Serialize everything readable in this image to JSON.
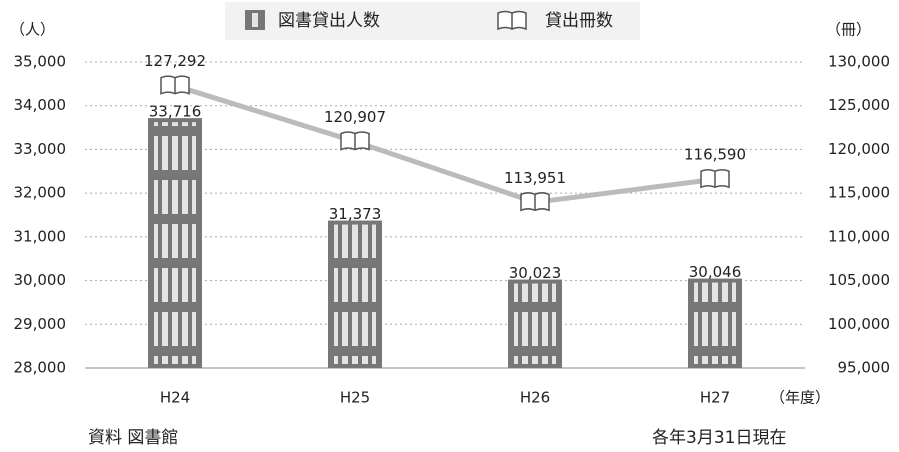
{
  "chart_data": {
    "type": "bar-line",
    "left_axis_label": "（人）",
    "right_axis_label": "（冊）",
    "x_axis_label": "（年度）",
    "source": "資料 図書館",
    "note": "各年3月31日現在",
    "categories": [
      "H24",
      "H25",
      "H26",
      "H27"
    ],
    "series": [
      {
        "name": "図書貸出人数",
        "type": "bar",
        "color": "#777777",
        "values": [
          33716,
          31373,
          30023,
          30046
        ],
        "value_labels": [
          "33,716",
          "31,373",
          "30,023",
          "30,046"
        ]
      },
      {
        "name": "貸出冊数",
        "type": "line",
        "axis": "y2",
        "color": "#bbbbbb",
        "values": [
          127292,
          120907,
          113951,
          116590
        ],
        "value_labels": [
          "127,292",
          "120,907",
          "113,951",
          "116,590"
        ]
      }
    ],
    "ylim": [
      28000,
      35000
    ],
    "yticks": [
      {
        "value": 28000,
        "label": "28,000"
      },
      {
        "value": 29000,
        "label": "29,000"
      },
      {
        "value": 30000,
        "label": "30,000"
      },
      {
        "value": 31000,
        "label": "31,000"
      },
      {
        "value": 32000,
        "label": "32,000"
      },
      {
        "value": 33000,
        "label": "33,000"
      },
      {
        "value": 34000,
        "label": "34,000"
      },
      {
        "value": 35000,
        "label": "35,000"
      }
    ],
    "y2lim": [
      95000,
      130000
    ],
    "y2ticks": [
      {
        "value": 95000,
        "label": "95,000"
      },
      {
        "value": 100000,
        "label": "100,000"
      },
      {
        "value": 105000,
        "label": "105,000"
      },
      {
        "value": 110000,
        "label": "110,000"
      },
      {
        "value": 115000,
        "label": "115,000"
      },
      {
        "value": 120000,
        "label": "120,000"
      },
      {
        "value": 125000,
        "label": "125,000"
      },
      {
        "value": 130000,
        "label": "130,000"
      }
    ],
    "grid": true
  }
}
